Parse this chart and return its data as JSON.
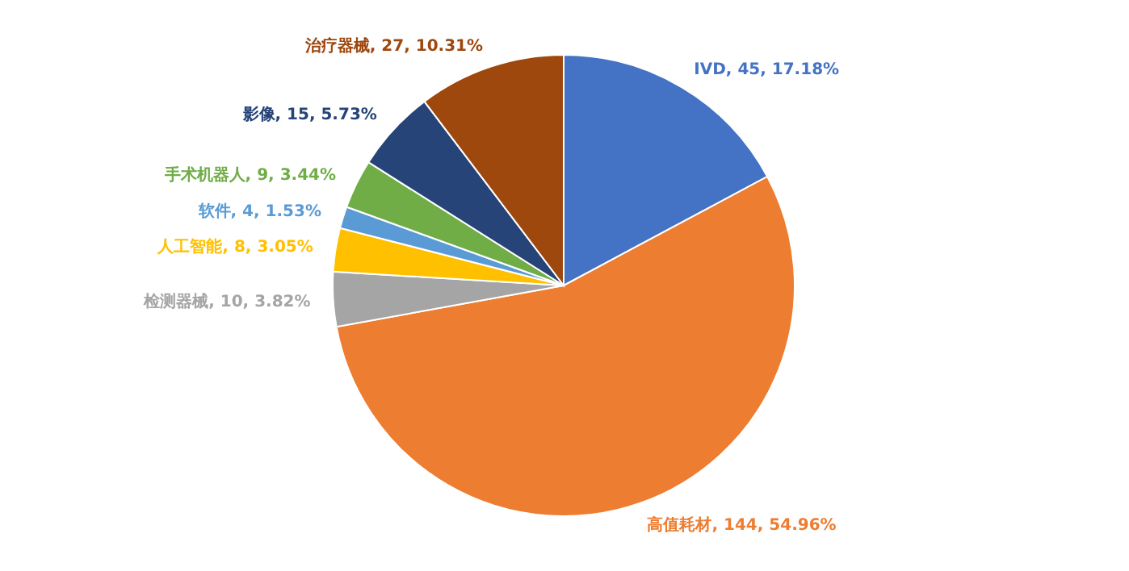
{
  "chart_data": {
    "type": "pie",
    "categories": [
      "IVD",
      "高值耗材",
      "检测器械",
      "人工智能",
      "软件",
      "手术机器人",
      "影像",
      "治疗器械"
    ],
    "values": [
      45,
      144,
      10,
      8,
      4,
      9,
      15,
      27
    ],
    "value_labels": [
      "45, 17.18%",
      "144, 54.96%",
      "10, 3.82%",
      "8, 3.05%",
      "4, 1.53%",
      "9, 3.44%",
      "15, 5.73%",
      "27, 10.31%"
    ],
    "colors": [
      "#4472c4",
      "#ed7d31",
      "#a5a5a5",
      "#ffc000",
      "#5b9bd5",
      "#70ad47",
      "#264478",
      "#9e480e"
    ],
    "legend": false
  }
}
